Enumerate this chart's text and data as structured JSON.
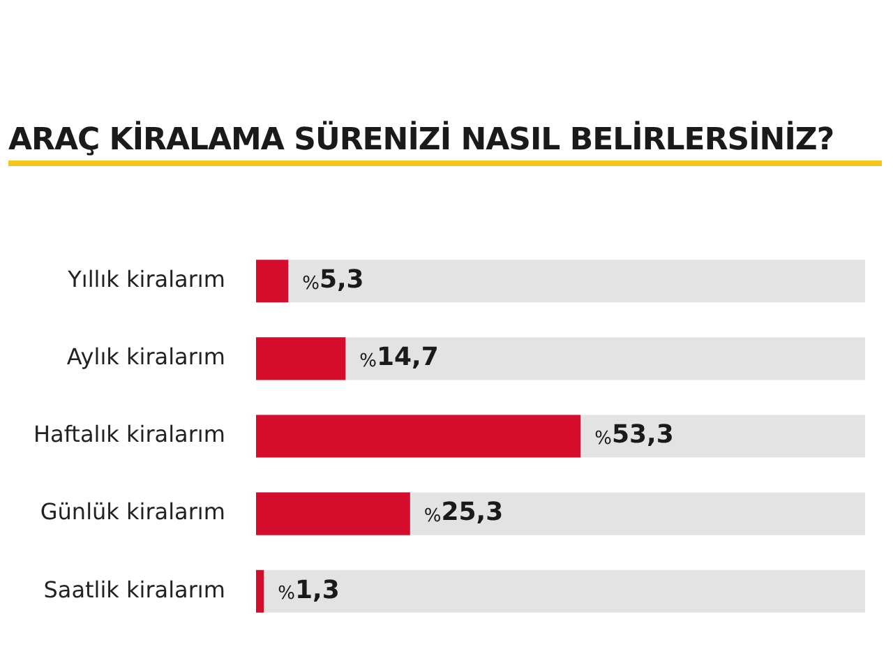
{
  "chart_data": {
    "type": "bar",
    "orientation": "horizontal",
    "title": "ARAÇ KİRALAMA SÜRENİZİ NASIL BELİRLERSİNİZ?",
    "categories": [
      "Yıllık kiralarım",
      "Aylık kiralarım",
      "Haftalık kiralarım",
      "Günlük kiralarım",
      "Saatlik kiralarım"
    ],
    "values": [
      5.3,
      14.7,
      53.3,
      25.3,
      1.3
    ],
    "value_labels": [
      "%5,3",
      "%14,7",
      "%53,3",
      "%25,3",
      "%1,3"
    ],
    "color": "#d50d2c",
    "xlim": [
      0,
      100
    ],
    "tick_labels": "y",
    "grid": false,
    "legend": false
  }
}
